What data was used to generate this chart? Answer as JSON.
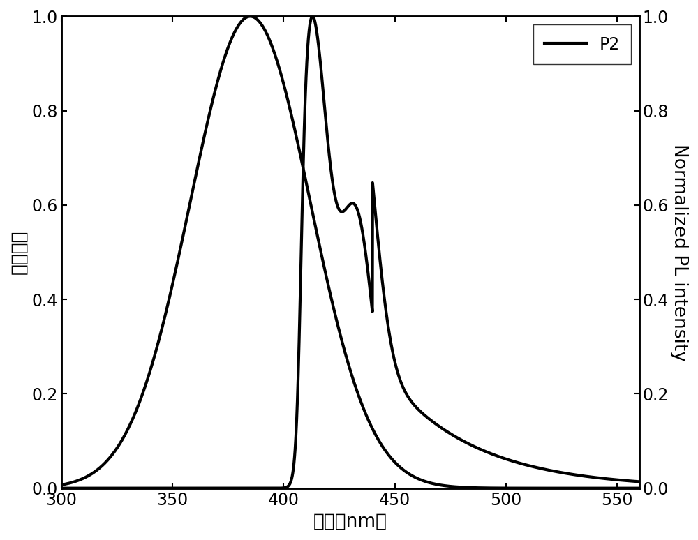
{
  "xlim": [
    300,
    560
  ],
  "ylim": [
    0,
    1
  ],
  "xlabel": "波长（nm）",
  "ylabel_left": "吸收强度",
  "ylabel_right": "Normalized PL intensity",
  "legend_label": "P2",
  "line_color": "#000000",
  "line_width": 3.0,
  "tick_fontsize": 17,
  "label_fontsize": 19,
  "legend_fontsize": 17,
  "xticks": [
    300,
    350,
    400,
    450,
    500,
    550
  ],
  "yticks_left": [
    0,
    0.2,
    0.4,
    0.6,
    0.8,
    1.0
  ],
  "yticks_right": [
    0,
    0.2,
    0.4,
    0.6,
    0.8,
    1.0
  ]
}
